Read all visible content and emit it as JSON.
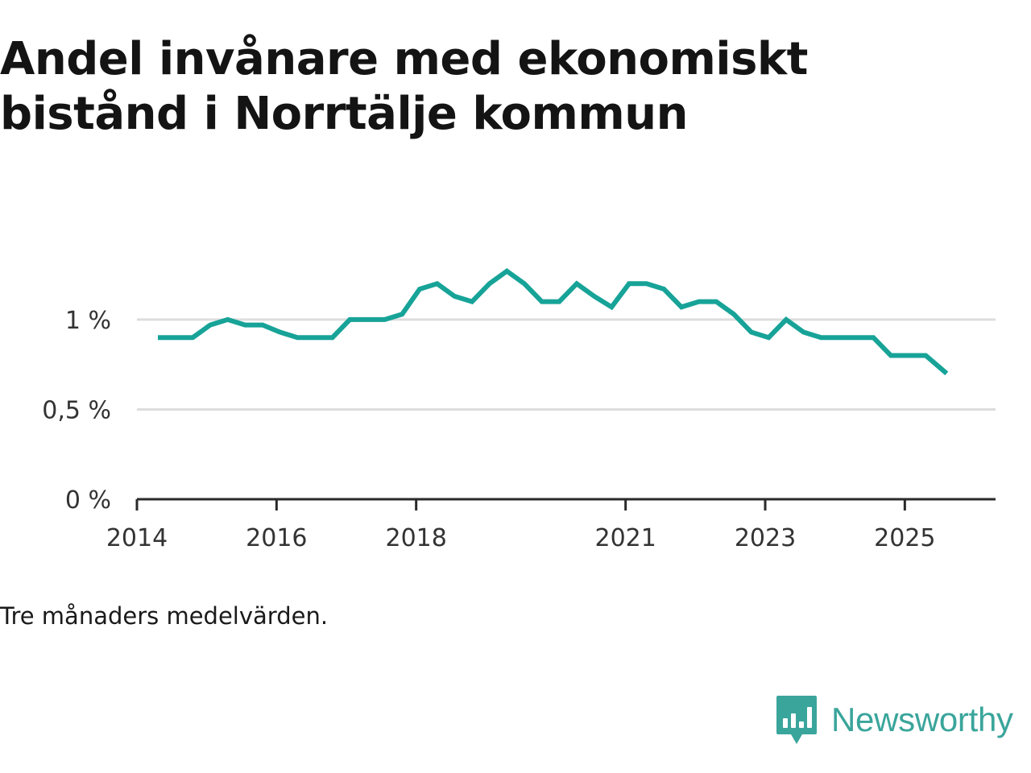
{
  "chart_data": {
    "type": "line",
    "title": "Andel invånare med ekonomiskt bistånd i Norrtälje kommun",
    "xlabel": "",
    "ylabel": "",
    "ylim": [
      0,
      1.3
    ],
    "xlim": [
      2014.0,
      2026.3
    ],
    "grid": true,
    "y_ticks": [
      {
        "value": 0,
        "label": "0 %"
      },
      {
        "value": 0.5,
        "label": "0,5 %"
      },
      {
        "value": 1,
        "label": "1 %"
      }
    ],
    "x_ticks": [
      {
        "value": 2014.0,
        "label": "2014"
      },
      {
        "value": 2016.0,
        "label": "2016"
      },
      {
        "value": 2018.0,
        "label": "2018"
      },
      {
        "value": 2021.0,
        "label": "2021"
      },
      {
        "value": 2023.0,
        "label": "2023"
      },
      {
        "value": 2025.0,
        "label": "2025"
      }
    ],
    "series": [
      {
        "name": "Andel invånare med ekonomiskt bistånd",
        "color": "#17a398",
        "x": [
          2014.3,
          2014.55,
          2014.8,
          2015.05,
          2015.3,
          2015.55,
          2015.8,
          2016.05,
          2016.3,
          2016.55,
          2016.8,
          2017.05,
          2017.3,
          2017.55,
          2017.8,
          2018.05,
          2018.3,
          2018.55,
          2018.8,
          2019.05,
          2019.3,
          2019.55,
          2019.8,
          2020.05,
          2020.3,
          2020.55,
          2020.8,
          2021.05,
          2021.3,
          2021.55,
          2021.8,
          2022.05,
          2022.3,
          2022.55,
          2022.8,
          2023.05,
          2023.3,
          2023.55,
          2023.8,
          2024.05,
          2024.3,
          2024.55,
          2024.8,
          2025.05,
          2025.3,
          2025.6
        ],
        "values": [
          0.9,
          0.9,
          0.9,
          0.97,
          1.0,
          0.97,
          0.97,
          0.93,
          0.9,
          0.9,
          0.9,
          1.0,
          1.0,
          1.0,
          1.03,
          1.17,
          1.2,
          1.13,
          1.1,
          1.2,
          1.27,
          1.2,
          1.1,
          1.1,
          1.2,
          1.13,
          1.07,
          1.2,
          1.2,
          1.17,
          1.07,
          1.1,
          1.1,
          1.03,
          0.93,
          0.9,
          1.0,
          0.93,
          0.9,
          0.9,
          0.9,
          0.9,
          0.8,
          0.8,
          0.8,
          0.7
        ]
      }
    ]
  },
  "note": "Tre månaders medelvärden.",
  "brand": {
    "name": "Newsworthy",
    "icon": "newsworthy-logo-icon",
    "color": "#3aa59b"
  },
  "colors": {
    "line": "#17a398",
    "grid": "#dddddd",
    "axis": "#2a2a2a",
    "text": "#333333"
  }
}
